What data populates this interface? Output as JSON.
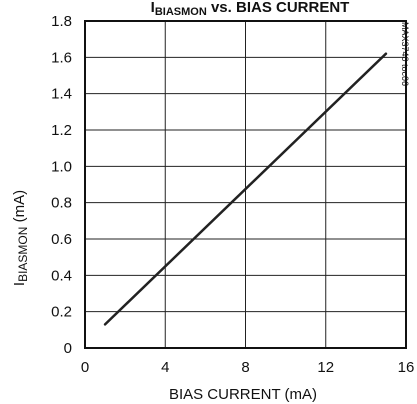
{
  "chart_data": {
    "type": "line",
    "title_main": "I",
    "title_sub": "BIASMON",
    "title_rest": " vs. BIAS CURRENT",
    "xlabel": "BIAS CURRENT (mA)",
    "ylabel_main": "I",
    "ylabel_sub": "BIASMON",
    "ylabel_rest": " (mA)",
    "side_code": "MAX3740 toc06",
    "xlim": [
      0,
      16
    ],
    "ylim": [
      0,
      1.8
    ],
    "x_ticks": [
      0,
      4,
      8,
      12,
      16
    ],
    "y_ticks": [
      0,
      0.2,
      0.4,
      0.6,
      0.8,
      1.0,
      1.2,
      1.4,
      1.6,
      1.8
    ],
    "x_tick_labels": [
      "0",
      "4",
      "8",
      "12",
      "16"
    ],
    "y_tick_labels": [
      "0",
      "0.2",
      "0.4",
      "0.6",
      "0.8",
      "1.0",
      "1.2",
      "1.4",
      "1.6",
      "1.8"
    ],
    "grid": true,
    "series": [
      {
        "x": [
          1,
          15
        ],
        "y": [
          0.13,
          1.62
        ]
      }
    ],
    "colors": {
      "line": "#222222",
      "grid": "#222222",
      "frame": "#111111"
    }
  }
}
